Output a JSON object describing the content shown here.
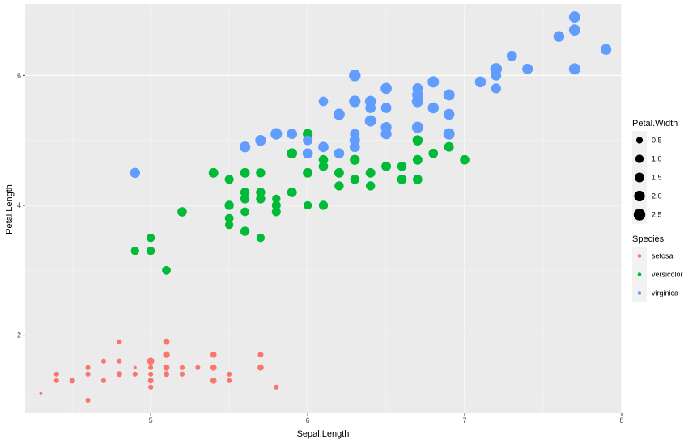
{
  "chart_data": {
    "type": "scatter",
    "xlabel": "Sepal.Length",
    "ylabel": "Petal.Length",
    "xlim": [
      4.2,
      8.0
    ],
    "ylim": [
      0.8,
      7.1
    ],
    "x_ticks": [
      5,
      6,
      7,
      8
    ],
    "y_ticks": [
      2,
      4,
      6
    ],
    "grid": true,
    "legend_position": "right",
    "size_legend": {
      "title": "Petal.Width",
      "values": [
        0.5,
        1.0,
        1.5,
        2.0,
        2.5
      ],
      "labels": [
        "0.5",
        "1.0",
        "1.5",
        "2.0",
        "2.5"
      ]
    },
    "color_legend": {
      "title": "Species"
    },
    "series": [
      {
        "name": "setosa",
        "color": "#F8766D",
        "points": [
          [
            4.3,
            1.1,
            0.1
          ],
          [
            4.4,
            1.3,
            0.2
          ],
          [
            4.4,
            1.4,
            0.2
          ],
          [
            4.5,
            1.3,
            0.3
          ],
          [
            4.6,
            1.0,
            0.2
          ],
          [
            4.6,
            1.4,
            0.2
          ],
          [
            4.6,
            1.5,
            0.2
          ],
          [
            4.7,
            1.3,
            0.2
          ],
          [
            4.7,
            1.6,
            0.2
          ],
          [
            4.8,
            1.4,
            0.3
          ],
          [
            4.8,
            1.6,
            0.2
          ],
          [
            4.8,
            1.9,
            0.2
          ],
          [
            4.9,
            1.4,
            0.2
          ],
          [
            4.9,
            1.5,
            0.1
          ],
          [
            5.0,
            1.2,
            0.2
          ],
          [
            5.0,
            1.3,
            0.3
          ],
          [
            5.0,
            1.4,
            0.2
          ],
          [
            5.0,
            1.5,
            0.2
          ],
          [
            5.0,
            1.6,
            0.6
          ],
          [
            5.1,
            1.4,
            0.3
          ],
          [
            5.1,
            1.5,
            0.4
          ],
          [
            5.1,
            1.7,
            0.5
          ],
          [
            5.1,
            1.9,
            0.4
          ],
          [
            5.2,
            1.4,
            0.2
          ],
          [
            5.2,
            1.5,
            0.2
          ],
          [
            5.3,
            1.5,
            0.2
          ],
          [
            5.4,
            1.3,
            0.4
          ],
          [
            5.4,
            1.5,
            0.4
          ],
          [
            5.4,
            1.7,
            0.4
          ],
          [
            5.5,
            1.3,
            0.2
          ],
          [
            5.5,
            1.4,
            0.2
          ],
          [
            5.7,
            1.5,
            0.4
          ],
          [
            5.7,
            1.7,
            0.3
          ],
          [
            5.8,
            1.2,
            0.2
          ]
        ]
      },
      {
        "name": "versicolor",
        "color": "#00BA38",
        "points": [
          [
            4.9,
            3.3,
            1.0
          ],
          [
            5.0,
            3.3,
            1.0
          ],
          [
            5.0,
            3.5,
            1.0
          ],
          [
            5.1,
            3.0,
            1.1
          ],
          [
            5.2,
            3.9,
            1.4
          ],
          [
            5.4,
            4.5,
            1.5
          ],
          [
            5.5,
            3.7,
            1.0
          ],
          [
            5.5,
            3.8,
            1.1
          ],
          [
            5.5,
            4.0,
            1.3
          ],
          [
            5.5,
            4.4,
            1.2
          ],
          [
            5.6,
            3.6,
            1.3
          ],
          [
            5.6,
            3.9,
            1.1
          ],
          [
            5.6,
            4.1,
            1.3
          ],
          [
            5.6,
            4.2,
            1.3
          ],
          [
            5.6,
            4.5,
            1.5
          ],
          [
            5.7,
            3.5,
            1.0
          ],
          [
            5.7,
            4.1,
            1.3
          ],
          [
            5.7,
            4.2,
            1.3
          ],
          [
            5.7,
            4.5,
            1.3
          ],
          [
            5.8,
            3.9,
            1.2
          ],
          [
            5.8,
            4.0,
            1.2
          ],
          [
            5.8,
            4.1,
            1.0
          ],
          [
            5.9,
            4.2,
            1.5
          ],
          [
            5.9,
            4.8,
            1.8
          ],
          [
            6.0,
            4.0,
            1.0
          ],
          [
            6.0,
            4.5,
            1.5
          ],
          [
            6.0,
            5.1,
            1.6
          ],
          [
            6.1,
            4.0,
            1.3
          ],
          [
            6.1,
            4.6,
            1.4
          ],
          [
            6.1,
            4.7,
            1.4
          ],
          [
            6.2,
            4.3,
            1.3
          ],
          [
            6.2,
            4.5,
            1.5
          ],
          [
            6.3,
            4.4,
            1.3
          ],
          [
            6.3,
            4.7,
            1.6
          ],
          [
            6.3,
            4.9,
            1.5
          ],
          [
            6.4,
            4.3,
            1.3
          ],
          [
            6.4,
            4.5,
            1.5
          ],
          [
            6.5,
            4.6,
            1.5
          ],
          [
            6.6,
            4.4,
            1.4
          ],
          [
            6.6,
            4.6,
            1.3
          ],
          [
            6.7,
            4.4,
            1.4
          ],
          [
            6.7,
            4.7,
            1.5
          ],
          [
            6.7,
            5.0,
            1.7
          ],
          [
            6.8,
            4.8,
            1.4
          ],
          [
            6.9,
            4.9,
            1.5
          ],
          [
            7.0,
            4.7,
            1.4
          ]
        ]
      },
      {
        "name": "virginica",
        "color": "#619CFF",
        "points": [
          [
            4.9,
            4.5,
            1.7
          ],
          [
            5.6,
            4.9,
            2.0
          ],
          [
            5.7,
            5.0,
            2.0
          ],
          [
            5.8,
            5.1,
            2.4
          ],
          [
            5.9,
            5.1,
            1.8
          ],
          [
            6.0,
            4.8,
            1.8
          ],
          [
            6.0,
            5.0,
            1.5
          ],
          [
            6.1,
            4.9,
            1.8
          ],
          [
            6.1,
            5.6,
            1.4
          ],
          [
            6.2,
            4.8,
            1.8
          ],
          [
            6.2,
            5.4,
            2.3
          ],
          [
            6.3,
            4.9,
            1.8
          ],
          [
            6.3,
            5.0,
            1.9
          ],
          [
            6.3,
            5.1,
            1.5
          ],
          [
            6.3,
            5.6,
            2.4
          ],
          [
            6.3,
            6.0,
            2.5
          ],
          [
            6.4,
            5.3,
            2.3
          ],
          [
            6.4,
            5.5,
            1.8
          ],
          [
            6.4,
            5.6,
            2.2
          ],
          [
            6.5,
            5.1,
            2.0
          ],
          [
            6.5,
            5.2,
            2.0
          ],
          [
            6.5,
            5.5,
            1.8
          ],
          [
            6.5,
            5.8,
            2.2
          ],
          [
            6.7,
            5.2,
            2.3
          ],
          [
            6.7,
            5.6,
            2.4
          ],
          [
            6.7,
            5.7,
            2.1
          ],
          [
            6.7,
            5.8,
            1.8
          ],
          [
            6.8,
            5.5,
            2.1
          ],
          [
            6.8,
            5.9,
            2.3
          ],
          [
            6.9,
            5.1,
            2.3
          ],
          [
            6.9,
            5.4,
            2.1
          ],
          [
            6.9,
            5.7,
            2.3
          ],
          [
            7.1,
            5.9,
            2.1
          ],
          [
            7.2,
            5.8,
            1.6
          ],
          [
            7.2,
            6.0,
            1.8
          ],
          [
            7.2,
            6.1,
            2.5
          ],
          [
            7.3,
            6.3,
            1.8
          ],
          [
            7.4,
            6.1,
            1.9
          ],
          [
            7.6,
            6.6,
            2.1
          ],
          [
            7.7,
            6.1,
            2.3
          ],
          [
            7.7,
            6.7,
            2.2
          ],
          [
            7.7,
            6.9,
            2.3
          ],
          [
            7.9,
            6.4,
            2.0
          ]
        ]
      }
    ]
  }
}
